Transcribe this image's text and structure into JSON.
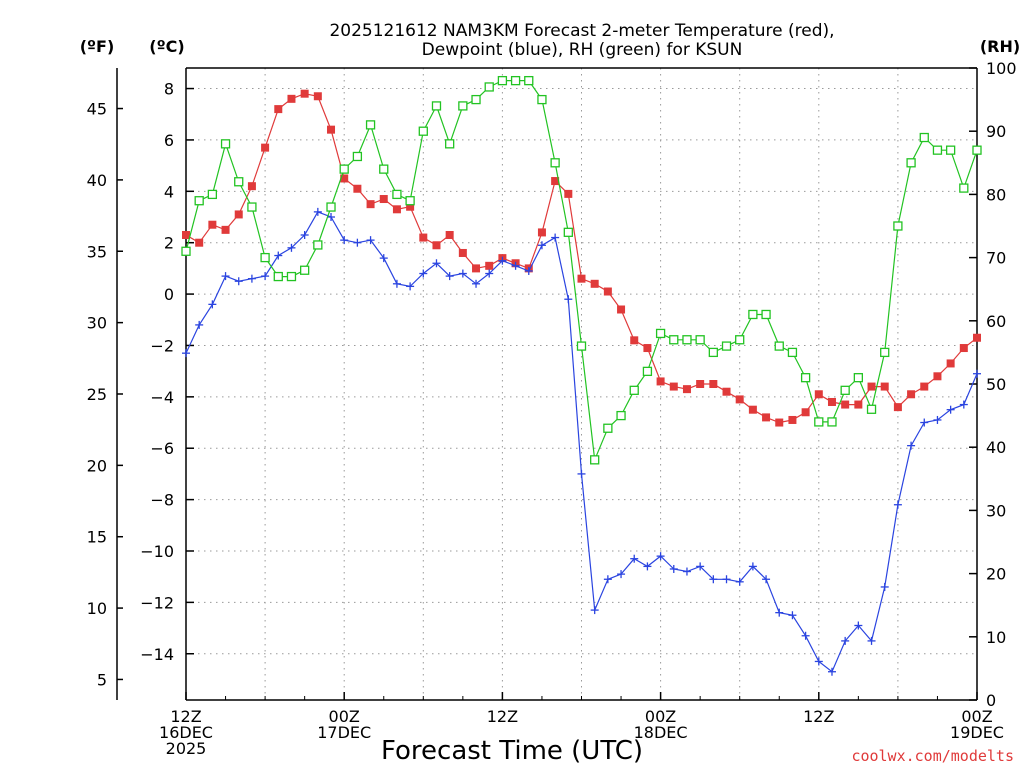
{
  "chart_data": {
    "type": "line",
    "title_line1": "2025121612 NAM3KM Forecast 2-meter Temperature (red),",
    "title_line2": "Dewpoint (blue), RH (green) for KSUN",
    "xlabel": "Forecast Time (UTC)",
    "watermark": "coolwx.com/modelts",
    "unit_f": "(ºF)",
    "unit_c": "(ºC)",
    "unit_rh": "(RH)",
    "x_ticks": [
      {
        "hour": 0,
        "lines": [
          "12Z",
          "16DEC",
          "2025"
        ]
      },
      {
        "hour": 12,
        "lines": [
          "00Z",
          "17DEC"
        ]
      },
      {
        "hour": 24,
        "lines": [
          "12Z"
        ]
      },
      {
        "hour": 36,
        "lines": [
          "00Z",
          "18DEC"
        ]
      },
      {
        "hour": 48,
        "lines": [
          "12Z"
        ]
      },
      {
        "hour": 60,
        "lines": [
          "00Z",
          "19DEC"
        ]
      }
    ],
    "x_range": [
      0,
      60
    ],
    "celsius_range": [
      -15.8,
      8.8
    ],
    "celsius_ticks": [
      8,
      6,
      4,
      2,
      0,
      -2,
      -4,
      -6,
      -8,
      -10,
      -12,
      -14
    ],
    "fahrenheit_ticks": [
      45,
      40,
      35,
      30,
      25,
      20,
      15,
      10,
      5
    ],
    "rh_range": [
      0,
      100
    ],
    "rh_ticks": [
      100,
      90,
      80,
      70,
      60,
      50,
      40,
      30,
      20,
      10,
      0
    ],
    "grid": true,
    "series": [
      {
        "name": "Temperature",
        "unit": "C",
        "color": "#e03a3a",
        "marker": "filled-square",
        "x": [
          0,
          1,
          2,
          3,
          4,
          5,
          6,
          7,
          8,
          9,
          10,
          11,
          12,
          13,
          14,
          15,
          16,
          17,
          18,
          19,
          20,
          21,
          22,
          23,
          24,
          25,
          26,
          27,
          28,
          29,
          30,
          31,
          32,
          33,
          34,
          35,
          36,
          37,
          38,
          39,
          40,
          41,
          42,
          43,
          44,
          45,
          46,
          47,
          48,
          49,
          50,
          51,
          52,
          53,
          54,
          55,
          56,
          57,
          58,
          59,
          60
        ],
        "values": [
          2.3,
          2.0,
          2.7,
          2.5,
          3.1,
          4.2,
          5.7,
          7.2,
          7.6,
          7.8,
          7.7,
          6.4,
          4.5,
          4.1,
          3.5,
          3.7,
          3.3,
          3.4,
          2.2,
          1.9,
          2.3,
          1.6,
          1.0,
          1.1,
          1.4,
          1.2,
          1.0,
          2.4,
          4.4,
          3.9,
          0.6,
          0.4,
          0.1,
          -0.6,
          -1.8,
          -2.1,
          -3.4,
          -3.6,
          -3.7,
          -3.5,
          -3.5,
          -3.8,
          -4.1,
          -4.5,
          -4.8,
          -5.0,
          -4.9,
          -4.6,
          -3.9,
          -4.2,
          -4.3,
          -4.3,
          -3.6,
          -3.6,
          -4.4,
          -3.9,
          -3.6,
          -3.2,
          -2.7,
          -2.1,
          -1.7
        ]
      },
      {
        "name": "Dewpoint",
        "unit": "C",
        "color": "#2a44e0",
        "marker": "plus",
        "x": [
          0,
          1,
          2,
          3,
          4,
          5,
          6,
          7,
          8,
          9,
          10,
          11,
          12,
          13,
          14,
          15,
          16,
          17,
          18,
          19,
          20,
          21,
          22,
          23,
          24,
          25,
          26,
          27,
          28,
          29,
          30,
          31,
          32,
          33,
          34,
          35,
          36,
          37,
          38,
          39,
          40,
          41,
          42,
          43,
          44,
          45,
          46,
          47,
          48,
          49,
          50,
          51,
          52,
          53,
          54,
          55,
          56,
          57,
          58,
          59,
          60
        ],
        "values": [
          -2.3,
          -1.2,
          -0.4,
          0.7,
          0.5,
          0.6,
          0.7,
          1.5,
          1.8,
          2.3,
          3.2,
          3.0,
          2.1,
          2.0,
          2.1,
          1.4,
          0.4,
          0.3,
          0.8,
          1.2,
          0.7,
          0.8,
          0.4,
          0.8,
          1.3,
          1.1,
          0.9,
          1.9,
          2.2,
          -0.2,
          -7.0,
          -12.3,
          -11.1,
          -10.9,
          -10.3,
          -10.6,
          -10.2,
          -10.7,
          -10.8,
          -10.6,
          -11.1,
          -11.1,
          -11.2,
          -10.6,
          -11.1,
          -12.4,
          -12.5,
          -13.3,
          -14.3,
          -14.7,
          -13.5,
          -12.9,
          -13.5,
          -11.4,
          -8.2,
          -5.9,
          -5.0,
          -4.9,
          -4.5,
          -4.3,
          -3.1
        ]
      },
      {
        "name": "RH",
        "unit": "%",
        "color": "#22c322",
        "marker": "open-square",
        "x": [
          0,
          1,
          2,
          3,
          4,
          5,
          6,
          7,
          8,
          9,
          10,
          11,
          12,
          13,
          14,
          15,
          16,
          17,
          18,
          19,
          20,
          21,
          22,
          23,
          24,
          25,
          26,
          27,
          28,
          29,
          30,
          31,
          32,
          33,
          34,
          35,
          36,
          37,
          38,
          39,
          40,
          41,
          42,
          43,
          44,
          45,
          46,
          47,
          48,
          49,
          50,
          51,
          52,
          53,
          54,
          55,
          56,
          57,
          58,
          59,
          60
        ],
        "values": [
          71,
          79,
          80,
          88,
          82,
          78,
          70,
          67,
          67,
          68,
          72,
          78,
          84,
          86,
          91,
          84,
          80,
          79,
          90,
          94,
          88,
          94,
          95,
          97,
          98,
          98,
          98,
          95,
          85,
          74,
          56,
          38,
          43,
          45,
          49,
          52,
          58,
          57,
          57,
          57,
          55,
          56,
          57,
          61,
          61,
          56,
          55,
          51,
          44,
          44,
          49,
          51,
          46,
          55,
          75,
          85,
          89,
          87,
          87,
          81,
          87
        ]
      }
    ]
  }
}
